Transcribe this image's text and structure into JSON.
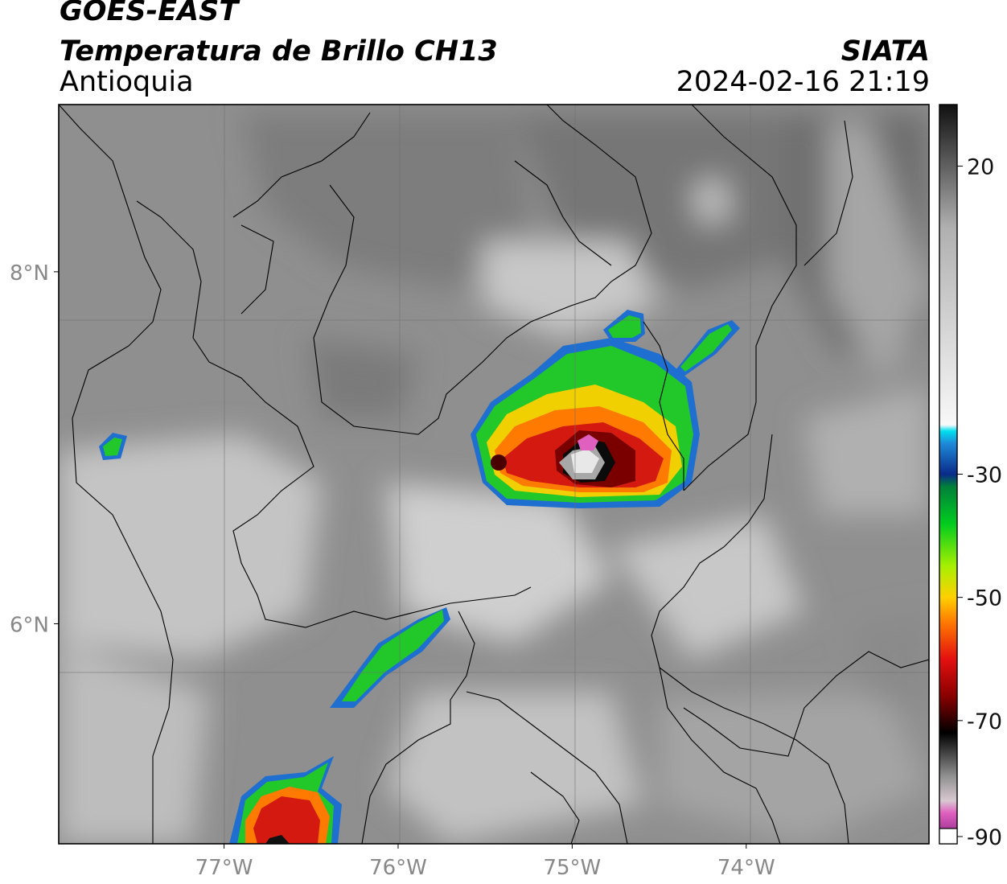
{
  "header": {
    "satellite": "GOES-EAST",
    "product": "Temperatura de Brillo CH13",
    "region": "Antioquia",
    "source": "SIATA",
    "datetime": "2024-02-16 21:19"
  },
  "map": {
    "lon_range": [
      -77.95,
      -72.95
    ],
    "lat_range": [
      4.75,
      8.95
    ],
    "lon_ticks": [
      {
        "value": -77,
        "label": "77°W"
      },
      {
        "value": -76,
        "label": "76°W"
      },
      {
        "value": -75,
        "label": "75°W"
      },
      {
        "value": -74,
        "label": "74°W"
      }
    ],
    "lat_ticks": [
      {
        "value": 8,
        "label": "8°N"
      },
      {
        "value": 6,
        "label": "6°N"
      }
    ],
    "grid": true
  },
  "colorbar": {
    "range": [
      -90,
      30
    ],
    "ticks": [
      {
        "value": 20,
        "label": "20"
      },
      {
        "value": -30,
        "label": "-30"
      },
      {
        "value": -50,
        "label": "-50"
      },
      {
        "value": -70,
        "label": "-70"
      },
      {
        "value": -90,
        "label": "-90"
      }
    ],
    "stops": [
      {
        "value": -90,
        "color": "#7a1a7a"
      },
      {
        "value": -85,
        "color": "#e060c0"
      },
      {
        "value": -83,
        "color": "#d8c8d0"
      },
      {
        "value": -79,
        "color": "#909090"
      },
      {
        "value": -72,
        "color": "#000000"
      },
      {
        "value": -66,
        "color": "#8a0000"
      },
      {
        "value": -60,
        "color": "#e41010"
      },
      {
        "value": -54,
        "color": "#ff7a00"
      },
      {
        "value": -50,
        "color": "#ffd000"
      },
      {
        "value": -45,
        "color": "#a8f000"
      },
      {
        "value": -38,
        "color": "#00cc20"
      },
      {
        "value": -32,
        "color": "#00803a"
      },
      {
        "value": -30,
        "color": "#0a2a8a"
      },
      {
        "value": -25,
        "color": "#1e8ad8"
      },
      {
        "value": -23,
        "color": "#00e0f0"
      },
      {
        "value": -22,
        "color": "#f8f8f8"
      },
      {
        "value": 10,
        "color": "#b0b0b0"
      },
      {
        "value": 20,
        "color": "#606060"
      },
      {
        "value": 30,
        "color": "#101010"
      }
    ]
  },
  "colors": {
    "background_gray": "#8f8f8f",
    "cold_green": "#22c82a",
    "cold_red": "#d41a10",
    "border": "#000000"
  }
}
